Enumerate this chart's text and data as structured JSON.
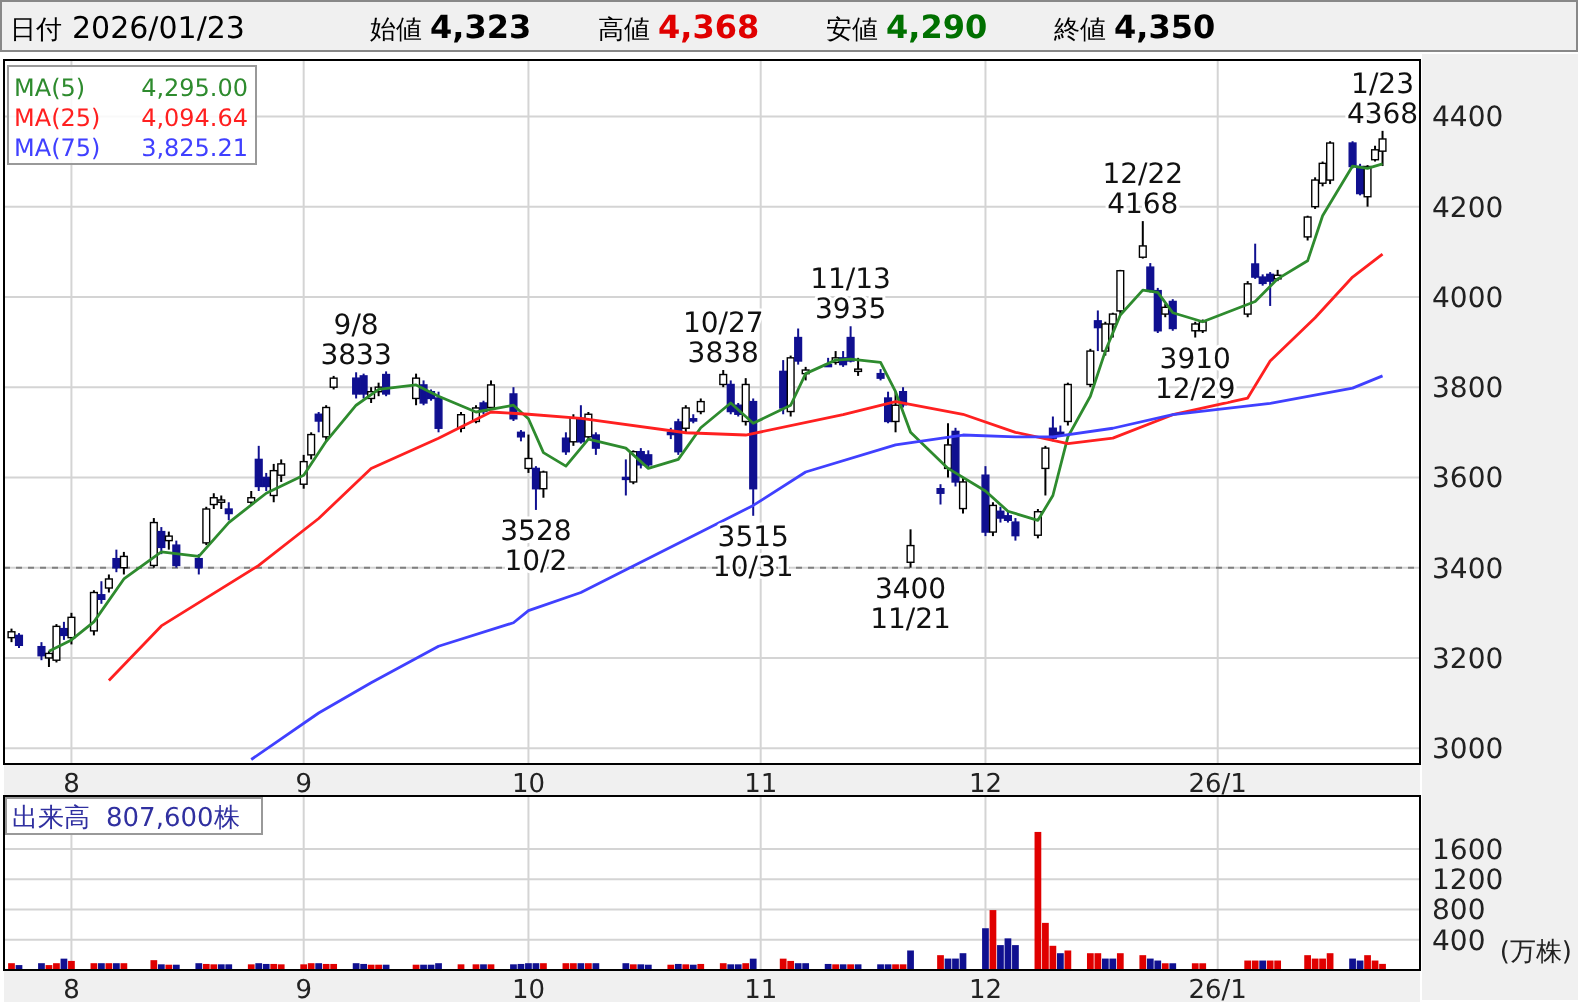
{
  "chart_data": [
    {
      "type": "candlestick",
      "title": "日付 2026/01/23",
      "annotations": [
        "始値 4,323",
        "高値 4,368",
        "安値 4,290",
        "終値 4,350",
        {
          "text": "9/8\n3833",
          "x": "2025-09-08",
          "y": 3833
        },
        {
          "text": "3528\n10/2",
          "x": "2025-10-02",
          "y": 3528
        },
        {
          "text": "10/27\n3838",
          "x": "2025-10-27",
          "y": 3838
        },
        {
          "text": "3515\n10/31",
          "x": "2025-10-31",
          "y": 3515
        },
        {
          "text": "11/13\n3935",
          "x": "2025-11-13",
          "y": 3935
        },
        {
          "text": "3400\n11/21",
          "x": "2025-11-21",
          "y": 3400
        },
        {
          "text": "12/22\n4168",
          "x": "2025-12-22",
          "y": 4168
        },
        {
          "text": "3910\n12/29",
          "x": "2025-12-29",
          "y": 3910
        },
        {
          "text": "1/23\n4368",
          "x": "2026-01-23",
          "y": 4368
        }
      ],
      "x": [
        "2025-07-24",
        "2025-07-25",
        "2025-07-28",
        "2025-07-29",
        "2025-07-30",
        "2025-07-31",
        "2025-08-01",
        "2025-08-04",
        "2025-08-05",
        "2025-08-06",
        "2025-08-07",
        "2025-08-08",
        "2025-08-12",
        "2025-08-13",
        "2025-08-14",
        "2025-08-15",
        "2025-08-18",
        "2025-08-19",
        "2025-08-20",
        "2025-08-21",
        "2025-08-22",
        "2025-08-25",
        "2025-08-26",
        "2025-08-27",
        "2025-08-28",
        "2025-08-29",
        "2025-09-01",
        "2025-09-02",
        "2025-09-03",
        "2025-09-04",
        "2025-09-05",
        "2025-09-08",
        "2025-09-09",
        "2025-09-10",
        "2025-09-11",
        "2025-09-12",
        "2025-09-16",
        "2025-09-17",
        "2025-09-18",
        "2025-09-19",
        "2025-09-22",
        "2025-09-24",
        "2025-09-25",
        "2025-09-26",
        "2025-09-29",
        "2025-09-30",
        "2025-10-01",
        "2025-10-02",
        "2025-10-03",
        "2025-10-06",
        "2025-10-07",
        "2025-10-08",
        "2025-10-09",
        "2025-10-10",
        "2025-10-14",
        "2025-10-15",
        "2025-10-16",
        "2025-10-17",
        "2025-10-20",
        "2025-10-21",
        "2025-10-22",
        "2025-10-23",
        "2025-10-24",
        "2025-10-27",
        "2025-10-28",
        "2025-10-29",
        "2025-10-30",
        "2025-10-31",
        "2025-11-04",
        "2025-11-05",
        "2025-11-06",
        "2025-11-07",
        "2025-11-10",
        "2025-11-11",
        "2025-11-12",
        "2025-11-13",
        "2025-11-14",
        "2025-11-17",
        "2025-11-18",
        "2025-11-19",
        "2025-11-20",
        "2025-11-21",
        "2025-11-25",
        "2025-11-26",
        "2025-11-27",
        "2025-11-28",
        "2025-12-01",
        "2025-12-02",
        "2025-12-03",
        "2025-12-04",
        "2025-12-05",
        "2025-12-08",
        "2025-12-09",
        "2025-12-10",
        "2025-12-11",
        "2025-12-12",
        "2025-12-15",
        "2025-12-16",
        "2025-12-17",
        "2025-12-18",
        "2025-12-19",
        "2025-12-22",
        "2025-12-23",
        "2025-12-24",
        "2025-12-25",
        "2025-12-26",
        "2025-12-29",
        "2025-12-30",
        "2026-01-05",
        "2026-01-06",
        "2026-01-07",
        "2026-01-08",
        "2026-01-09",
        "2026-01-13",
        "2026-01-14",
        "2026-01-15",
        "2026-01-16",
        "2026-01-19",
        "2026-01-20",
        "2026-01-21",
        "2026-01-22",
        "2026-01-23"
      ],
      "ohlc": [
        [
          3245,
          3265,
          3235,
          3258
        ],
        [
          3250,
          3255,
          3222,
          3228
        ],
        [
          3225,
          3235,
          3195,
          3205
        ],
        [
          3200,
          3215,
          3180,
          3210
        ],
        [
          3195,
          3275,
          3190,
          3270
        ],
        [
          3265,
          3280,
          3240,
          3250
        ],
        [
          3245,
          3300,
          3230,
          3290
        ],
        [
          3260,
          3350,
          3250,
          3345
        ],
        [
          3340,
          3370,
          3320,
          3330
        ],
        [
          3355,
          3385,
          3345,
          3375
        ],
        [
          3420,
          3440,
          3390,
          3400
        ],
        [
          3400,
          3435,
          3385,
          3425
        ],
        [
          3405,
          3510,
          3400,
          3500
        ],
        [
          3480,
          3490,
          3430,
          3445
        ],
        [
          3460,
          3480,
          3440,
          3470
        ],
        [
          3450,
          3460,
          3400,
          3405
        ],
        [
          3420,
          3430,
          3385,
          3400
        ],
        [
          3455,
          3535,
          3450,
          3530
        ],
        [
          3540,
          3565,
          3530,
          3555
        ],
        [
          3545,
          3560,
          3530,
          3550
        ],
        [
          3530,
          3545,
          3505,
          3520
        ],
        [
          3545,
          3570,
          3540,
          3555
        ],
        [
          3640,
          3670,
          3570,
          3580
        ],
        [
          3600,
          3610,
          3570,
          3580
        ],
        [
          3560,
          3630,
          3545,
          3615
        ],
        [
          3605,
          3640,
          3590,
          3630
        ],
        [
          3585,
          3650,
          3575,
          3635
        ],
        [
          3650,
          3700,
          3640,
          3695
        ],
        [
          3740,
          3745,
          3700,
          3725
        ],
        [
          3690,
          3760,
          3680,
          3755
        ],
        [
          3800,
          3825,
          3795,
          3820
        ],
        [
          3820,
          3833,
          3775,
          3785
        ],
        [
          3825,
          3830,
          3775,
          3785
        ],
        [
          3775,
          3800,
          3765,
          3790
        ],
        [
          3790,
          3810,
          3780,
          3800
        ],
        [
          3828,
          3835,
          3780,
          3785
        ],
        [
          3775,
          3830,
          3760,
          3820
        ],
        [
          3805,
          3815,
          3760,
          3765
        ],
        [
          3790,
          3795,
          3770,
          3775
        ],
        [
          3776,
          3790,
          3700,
          3709
        ],
        [
          3709,
          3745,
          3700,
          3739
        ],
        [
          3724,
          3760,
          3720,
          3754
        ],
        [
          3765,
          3770,
          3740,
          3746
        ],
        [
          3755,
          3815,
          3750,
          3805
        ],
        [
          3785,
          3800,
          3725,
          3730
        ],
        [
          3700,
          3705,
          3680,
          3690
        ],
        [
          3620,
          3695,
          3610,
          3642
        ],
        [
          3620,
          3625,
          3528,
          3575
        ],
        [
          3575,
          3615,
          3555,
          3612
        ],
        [
          3687,
          3700,
          3650,
          3657
        ],
        [
          3679,
          3740,
          3670,
          3731
        ],
        [
          3731,
          3760,
          3675,
          3679
        ],
        [
          3690,
          3745,
          3685,
          3740
        ],
        [
          3694,
          3700,
          3650,
          3665
        ],
        [
          3600,
          3640,
          3560,
          3598
        ],
        [
          3590,
          3660,
          3585,
          3657
        ],
        [
          3657,
          3665,
          3620,
          3628
        ],
        [
          3650,
          3660,
          3620,
          3628
        ],
        [
          3700,
          3710,
          3685,
          3695
        ],
        [
          3723,
          3730,
          3650,
          3657
        ],
        [
          3709,
          3760,
          3700,
          3754
        ],
        [
          3730,
          3740,
          3720,
          3725
        ],
        [
          3746,
          3775,
          3740,
          3768
        ],
        [
          3806,
          3838,
          3800,
          3828
        ],
        [
          3806,
          3815,
          3740,
          3746
        ],
        [
          3760,
          3765,
          3735,
          3740
        ],
        [
          3724,
          3820,
          3715,
          3806
        ],
        [
          3768,
          3775,
          3515,
          3575
        ],
        [
          3835,
          3860,
          3740,
          3754
        ],
        [
          3746,
          3870,
          3735,
          3865
        ],
        [
          3910,
          3930,
          3850,
          3858
        ],
        [
          3830,
          3845,
          3815,
          3838
        ],
        [
          3850,
          3865,
          3845,
          3848
        ],
        [
          3855,
          3880,
          3850,
          3865
        ],
        [
          3865,
          3880,
          3845,
          3850
        ],
        [
          3910,
          3935,
          3855,
          3858
        ],
        [
          3835,
          3865,
          3825,
          3840
        ],
        [
          3830,
          3840,
          3815,
          3820
        ],
        [
          3776,
          3790,
          3720,
          3724
        ],
        [
          3724,
          3790,
          3700,
          3760
        ],
        [
          3790,
          3800,
          3755,
          3761
        ],
        [
          3412,
          3485,
          3400,
          3449
        ],
        [
          3575,
          3585,
          3540,
          3565
        ],
        [
          3620,
          3720,
          3600,
          3672
        ],
        [
          3702,
          3710,
          3580,
          3590
        ],
        [
          3531,
          3600,
          3520,
          3590
        ],
        [
          3605,
          3625,
          3470,
          3479
        ],
        [
          3479,
          3545,
          3470,
          3538
        ],
        [
          3525,
          3535,
          3500,
          3510
        ],
        [
          3515,
          3525,
          3500,
          3505
        ],
        [
          3501,
          3510,
          3460,
          3471
        ],
        [
          3472,
          3530,
          3465,
          3524
        ],
        [
          3620,
          3670,
          3560,
          3665
        ],
        [
          3709,
          3735,
          3680,
          3687
        ],
        [
          3700,
          3715,
          3690,
          3695
        ],
        [
          3724,
          3810,
          3715,
          3806
        ],
        [
          3806,
          3885,
          3800,
          3880
        ],
        [
          3947,
          3970,
          3880,
          3932
        ],
        [
          3880,
          3945,
          3870,
          3940
        ],
        [
          3940,
          3965,
          3910,
          3962
        ],
        [
          3969,
          4060,
          3960,
          4058
        ],
        [
          4088,
          4168,
          4085,
          4113
        ],
        [
          4066,
          4075,
          4010,
          4014
        ],
        [
          4014,
          4020,
          3920,
          3925
        ],
        [
          3962,
          3985,
          3955,
          3977
        ],
        [
          3990,
          3995,
          3925,
          3930
        ],
        [
          3925,
          3945,
          3910,
          3940
        ],
        [
          3925,
          3950,
          3920,
          3945
        ],
        [
          3962,
          4035,
          3955,
          4029
        ],
        [
          4073,
          4118,
          4040,
          4044
        ],
        [
          4044,
          4050,
          4025,
          4030
        ],
        [
          4050,
          4055,
          3980,
          4035
        ],
        [
          4040,
          4060,
          4035,
          4048
        ],
        [
          4133,
          4180,
          4125,
          4177
        ],
        [
          4200,
          4265,
          4195,
          4259
        ],
        [
          4252,
          4300,
          4245,
          4296
        ],
        [
          4259,
          4345,
          4250,
          4341
        ],
        [
          4341,
          4345,
          4285,
          4289
        ],
        [
          4289,
          4295,
          4225,
          4229
        ],
        [
          4222,
          4292,
          4200,
          4289
        ],
        [
          4304,
          4335,
          4300,
          4326
        ],
        [
          4323,
          4368,
          4290,
          4350
        ]
      ],
      "series": [
        {
          "type": "line",
          "name": "MA(5) 4,295.00",
          "color": "#2e8b2e",
          "x": [
            "2025-07-29",
            "2025-08-01",
            "2025-08-04",
            "2025-08-08",
            "2025-08-13",
            "2025-08-18",
            "2025-08-22",
            "2025-08-27",
            "2025-09-01",
            "2025-09-04",
            "2025-09-08",
            "2025-09-11",
            "2025-09-16",
            "2025-09-19",
            "2025-09-24",
            "2025-09-29",
            "2025-10-01",
            "2025-10-03",
            "2025-10-06",
            "2025-10-09",
            "2025-10-14",
            "2025-10-17",
            "2025-10-21",
            "2025-10-24",
            "2025-10-28",
            "2025-10-31",
            "2025-11-05",
            "2025-11-07",
            "2025-11-11",
            "2025-11-13",
            "2025-11-17",
            "2025-11-19",
            "2025-11-21",
            "2025-11-26",
            "2025-12-01",
            "2025-12-04",
            "2025-12-08",
            "2025-12-10",
            "2025-12-12",
            "2025-12-15",
            "2025-12-17",
            "2025-12-19",
            "2025-12-22",
            "2025-12-24",
            "2025-12-26",
            "2025-12-30",
            "2026-01-06",
            "2026-01-09",
            "2026-01-13",
            "2026-01-15",
            "2026-01-19",
            "2026-01-21",
            "2026-01-23"
          ],
          "values": [
            3215,
            3240,
            3280,
            3375,
            3435,
            3425,
            3500,
            3565,
            3605,
            3680,
            3760,
            3795,
            3805,
            3780,
            3745,
            3760,
            3730,
            3655,
            3625,
            3685,
            3665,
            3620,
            3640,
            3710,
            3765,
            3720,
            3760,
            3830,
            3860,
            3862,
            3855,
            3790,
            3700,
            3620,
            3570,
            3525,
            3505,
            3560,
            3690,
            3780,
            3880,
            3960,
            4015,
            4010,
            3965,
            3945,
            3990,
            4040,
            4080,
            4180,
            4290,
            4285,
            4295
          ]
        },
        {
          "type": "line",
          "name": "MA(25) 4,094.64",
          "color": "#ff2020",
          "x": [
            "2025-08-06",
            "2025-08-13",
            "2025-08-26",
            "2025-09-03",
            "2025-09-10",
            "2025-09-19",
            "2025-09-26",
            "2025-10-01",
            "2025-10-08",
            "2025-10-22",
            "2025-10-30",
            "2025-11-12",
            "2025-11-19",
            "2025-11-28",
            "2025-12-05",
            "2025-12-12",
            "2025-12-18",
            "2025-12-26",
            "2026-01-05",
            "2026-01-08",
            "2026-01-14",
            "2026-01-19",
            "2026-01-23"
          ],
          "values": [
            3150,
            3271,
            3405,
            3509,
            3620,
            3687,
            3745,
            3740,
            3731,
            3699,
            3694,
            3739,
            3768,
            3740,
            3700,
            3675,
            3687,
            3739,
            3776,
            3858,
            3954,
            4044,
            4095
          ]
        },
        {
          "type": "line",
          "name": "MA(75) 3,825.21",
          "color": "#4040ff",
          "x": [
            "2025-08-25",
            "2025-09-03",
            "2025-09-10",
            "2025-09-19",
            "2025-09-29",
            "2025-10-01",
            "2025-10-08",
            "2025-10-15",
            "2025-10-24",
            "2025-10-31",
            "2025-11-07",
            "2025-11-19",
            "2025-11-28",
            "2025-12-05",
            "2025-12-10",
            "2025-12-18",
            "2025-12-26",
            "2026-01-08",
            "2026-01-19",
            "2026-01-23"
          ],
          "values": [
            2975,
            3078,
            3145,
            3226,
            3278,
            3305,
            3345,
            3404,
            3479,
            3538,
            3612,
            3672,
            3694,
            3690,
            3690,
            3709,
            3739,
            3764,
            3798,
            3825
          ]
        }
      ],
      "xlim": [
        "2025-07-23",
        "2026-01-28"
      ],
      "xticks": [
        {
          "value": "2025-08-01",
          "label": "8"
        },
        {
          "value": "2025-09-01",
          "label": "9"
        },
        {
          "value": "2025-10-01",
          "label": "10"
        },
        {
          "value": "2025-11-01",
          "label": "11"
        },
        {
          "value": "2025-12-01",
          "label": "12"
        },
        {
          "value": "2026-01-01",
          "label": "26/1"
        }
      ],
      "ylim": [
        2965,
        4525
      ],
      "yticks": [
        3000,
        3200,
        3400,
        3600,
        3800,
        4000,
        4200,
        4400
      ],
      "grid": true,
      "ref_lines": [
        {
          "axis": "y",
          "value": 3400,
          "color": "#808080",
          "line_style": "dashed"
        }
      ]
    },
    {
      "type": "bar",
      "title": "出来高 807,600株",
      "ylabel": "(万株)",
      "x": [
        "2025-07-24",
        "2025-07-25",
        "2025-07-28",
        "2025-07-29",
        "2025-07-30",
        "2025-07-31",
        "2025-08-01",
        "2025-08-04",
        "2025-08-05",
        "2025-08-06",
        "2025-08-07",
        "2025-08-08",
        "2025-08-12",
        "2025-08-13",
        "2025-08-14",
        "2025-08-15",
        "2025-08-18",
        "2025-08-19",
        "2025-08-20",
        "2025-08-21",
        "2025-08-22",
        "2025-08-25",
        "2025-08-26",
        "2025-08-27",
        "2025-08-28",
        "2025-08-29",
        "2025-09-01",
        "2025-09-02",
        "2025-09-03",
        "2025-09-04",
        "2025-09-05",
        "2025-09-08",
        "2025-09-09",
        "2025-09-10",
        "2025-09-11",
        "2025-09-12",
        "2025-09-16",
        "2025-09-17",
        "2025-09-18",
        "2025-09-19",
        "2025-09-22",
        "2025-09-24",
        "2025-09-25",
        "2025-09-26",
        "2025-09-29",
        "2025-09-30",
        "2025-10-01",
        "2025-10-02",
        "2025-10-03",
        "2025-10-06",
        "2025-10-07",
        "2025-10-08",
        "2025-10-09",
        "2025-10-10",
        "2025-10-14",
        "2025-10-15",
        "2025-10-16",
        "2025-10-17",
        "2025-10-20",
        "2025-10-21",
        "2025-10-22",
        "2025-10-23",
        "2025-10-24",
        "2025-10-27",
        "2025-10-28",
        "2025-10-29",
        "2025-10-30",
        "2025-10-31",
        "2025-11-04",
        "2025-11-05",
        "2025-11-06",
        "2025-11-07",
        "2025-11-10",
        "2025-11-11",
        "2025-11-12",
        "2025-11-13",
        "2025-11-14",
        "2025-11-17",
        "2025-11-18",
        "2025-11-19",
        "2025-11-20",
        "2025-11-21",
        "2025-11-25",
        "2025-11-26",
        "2025-11-27",
        "2025-11-28",
        "2025-12-01",
        "2025-12-02",
        "2025-12-03",
        "2025-12-04",
        "2025-12-05",
        "2025-12-08",
        "2025-12-09",
        "2025-12-10",
        "2025-12-11",
        "2025-12-12",
        "2025-12-15",
        "2025-12-16",
        "2025-12-17",
        "2025-12-18",
        "2025-12-19",
        "2025-12-22",
        "2025-12-23",
        "2025-12-24",
        "2025-12-25",
        "2025-12-26",
        "2025-12-29",
        "2025-12-30",
        "2026-01-05",
        "2026-01-06",
        "2026-01-07",
        "2026-01-08",
        "2026-01-09",
        "2026-01-13",
        "2026-01-14",
        "2026-01-15",
        "2026-01-16",
        "2026-01-19",
        "2026-01-20",
        "2026-01-21",
        "2026-01-22",
        "2026-01-23"
      ],
      "values": [
        90,
        65,
        90,
        65,
        90,
        150,
        120,
        90,
        90,
        90,
        90,
        90,
        130,
        75,
        70,
        70,
        90,
        80,
        75,
        75,
        75,
        75,
        90,
        80,
        80,
        75,
        75,
        90,
        90,
        80,
        80,
        90,
        80,
        70,
        70,
        70,
        70,
        70,
        70,
        90,
        75,
        75,
        75,
        75,
        75,
        80,
        90,
        90,
        90,
        90,
        90,
        90,
        90,
        90,
        90,
        75,
        75,
        70,
        70,
        80,
        75,
        70,
        80,
        90,
        75,
        75,
        90,
        150,
        150,
        120,
        90,
        90,
        80,
        75,
        75,
        75,
        75,
        75,
        75,
        75,
        75,
        258,
        196,
        151,
        151,
        222,
        552,
        792,
        329,
        418,
        329,
        1825,
        623,
        320,
        222,
        258,
        222,
        222,
        151,
        151,
        222,
        196,
        151,
        125,
        89,
        89,
        89,
        89,
        125,
        125,
        125,
        125,
        125,
        196,
        151,
        151,
        222,
        151,
        125,
        196,
        125,
        80.76
      ],
      "colors": [
        "#e00000",
        "#101090",
        "#101090",
        "#e00000",
        "#e00000",
        "#101090",
        "#e00000",
        "#e00000",
        "#101090",
        "#e00000",
        "#101090",
        "#e00000",
        "#e00000",
        "#101090",
        "#e00000",
        "#101090",
        "#101090",
        "#e00000",
        "#e00000",
        "#101090",
        "#101090",
        "#e00000",
        "#101090",
        "#101090",
        "#e00000",
        "#e00000",
        "#e00000",
        "#e00000",
        "#101090",
        "#e00000",
        "#e00000",
        "#101090",
        "#101090",
        "#e00000",
        "#e00000",
        "#101090",
        "#e00000",
        "#101090",
        "#101090",
        "#101090",
        "#e00000",
        "#e00000",
        "#101090",
        "#e00000",
        "#101090",
        "#101090",
        "#101090",
        "#101090",
        "#e00000",
        "#e00000",
        "#e00000",
        "#101090",
        "#e00000",
        "#101090",
        "#101090",
        "#e00000",
        "#101090",
        "#101090",
        "#e00000",
        "#101090",
        "#e00000",
        "#101090",
        "#e00000",
        "#e00000",
        "#101090",
        "#101090",
        "#e00000",
        "#101090",
        "#e00000",
        "#e00000",
        "#101090",
        "#101090",
        "#101090",
        "#e00000",
        "#101090",
        "#e00000",
        "#101090",
        "#101090",
        "#101090",
        "#e00000",
        "#e00000",
        "#101090",
        "#e00000",
        "#101090",
        "#101090",
        "#101090",
        "#101090",
        "#e00000",
        "#101090",
        "#101090",
        "#101090",
        "#e00000",
        "#e00000",
        "#e00000",
        "#101090",
        "#e00000",
        "#e00000",
        "#e00000",
        "#101090",
        "#101090",
        "#e00000",
        "#e00000",
        "#101090",
        "#101090",
        "#e00000",
        "#101090",
        "#e00000",
        "#e00000",
        "#e00000",
        "#e00000",
        "#101090",
        "#e00000",
        "#e00000",
        "#e00000",
        "#e00000",
        "#e00000",
        "#e00000",
        "#101090",
        "#101090",
        "#e00000",
        "#e00000",
        "#e00000"
      ],
      "xlim": [
        "2025-07-23",
        "2026-01-28"
      ],
      "xticks": [
        {
          "value": "2025-08-01",
          "label": "8"
        },
        {
          "value": "2025-09-01",
          "label": "9"
        },
        {
          "value": "2025-10-01",
          "label": "10"
        },
        {
          "value": "2025-11-01",
          "label": "11"
        },
        {
          "value": "2025-12-01",
          "label": "12"
        },
        {
          "value": "2026-01-01",
          "label": "26/1"
        }
      ],
      "ylim": [
        0,
        2300
      ],
      "yticks": [
        400,
        800,
        1200,
        1600
      ],
      "grid": true
    }
  ]
}
